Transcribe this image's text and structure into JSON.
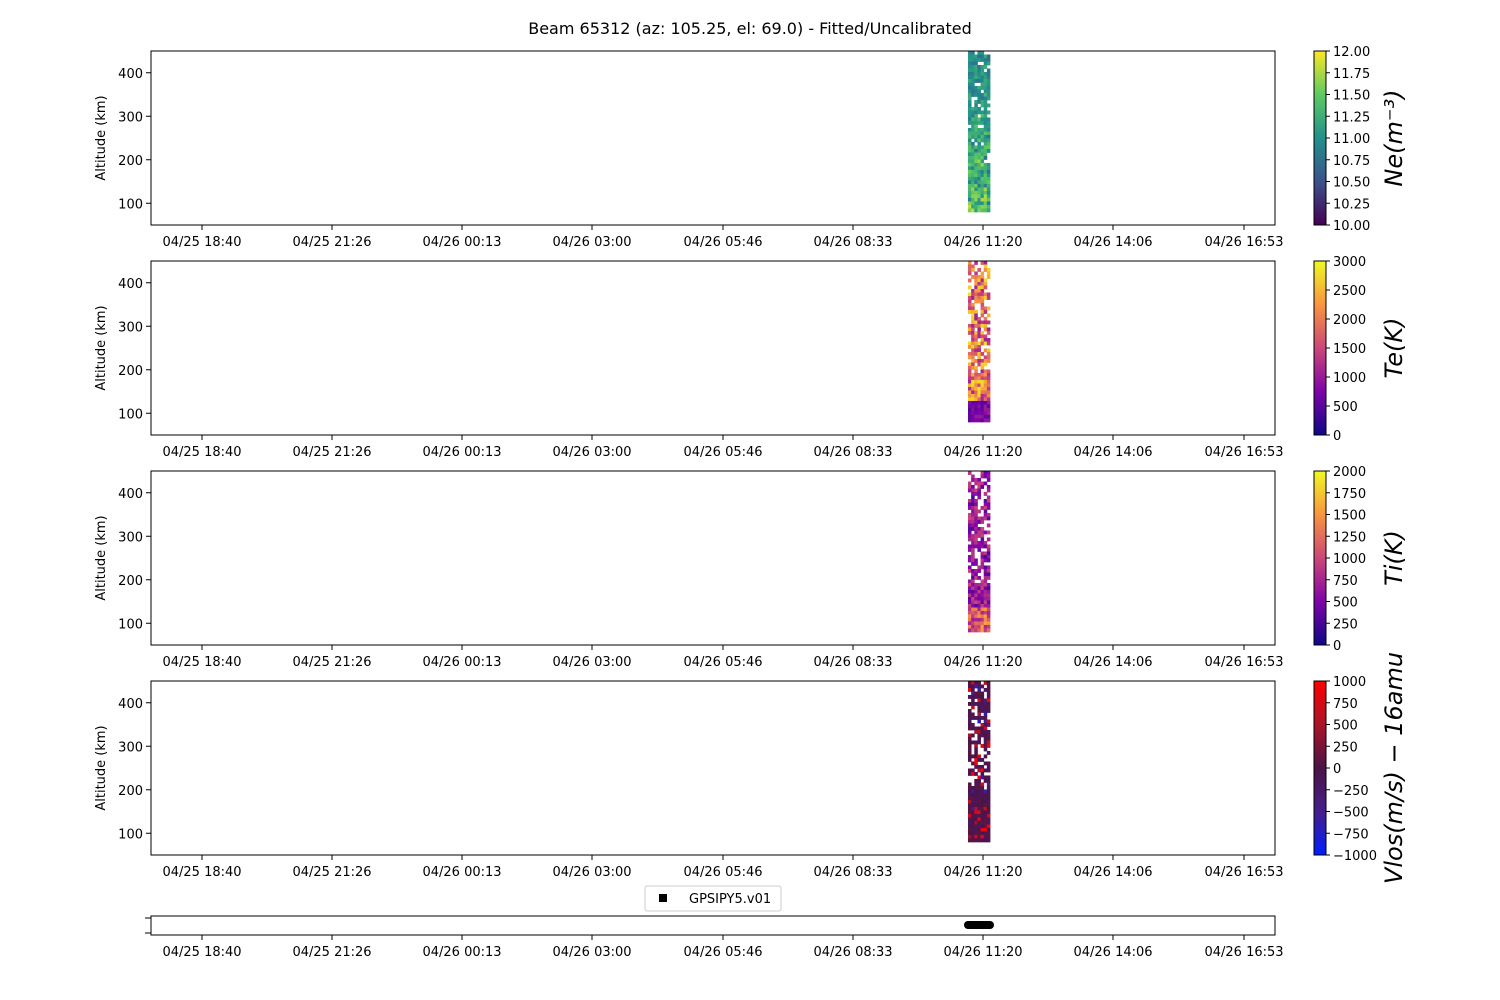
{
  "title": "Beam 65312 (az: 105.25, el: 69.0) - Fitted/Uncalibrated",
  "time_ticks": [
    "04/25 18:40",
    "04/25 21:26",
    "04/26 00:13",
    "04/26 03:00",
    "04/26 05:46",
    "04/26 08:33",
    "04/26 11:20",
    "04/26 14:06",
    "04/26 16:53"
  ],
  "legend_label": "GPSIPY5.v01",
  "chart_data": [
    {
      "type": "heatmap",
      "ylabel": "Altitude (km)",
      "yticks": [
        100,
        200,
        300,
        400
      ],
      "ylim": [
        50,
        450
      ],
      "data_time_range": [
        "04/26 10:45",
        "04/26 11:30"
      ],
      "data_alt_range_km": [
        80,
        450
      ],
      "colorbar": {
        "label": "Ne(m⁻³)",
        "colormap": "viridis",
        "range": [
          10.0,
          12.0
        ],
        "ticks": [
          "12.00",
          "11.75",
          "11.50",
          "11.25",
          "11.00",
          "10.75",
          "10.50",
          "10.25",
          "10.00"
        ]
      }
    },
    {
      "type": "heatmap",
      "ylabel": "Altitude (km)",
      "yticks": [
        100,
        200,
        300,
        400
      ],
      "ylim": [
        50,
        450
      ],
      "data_time_range": [
        "04/26 10:45",
        "04/26 11:30"
      ],
      "data_alt_range_km": [
        80,
        450
      ],
      "colorbar": {
        "label": "Te(K)",
        "colormap": "plasma",
        "range": [
          0,
          3000
        ],
        "ticks": [
          "3000",
          "2500",
          "2000",
          "1500",
          "1000",
          "500",
          "0"
        ]
      }
    },
    {
      "type": "heatmap",
      "ylabel": "Altitude (km)",
      "yticks": [
        100,
        200,
        300,
        400
      ],
      "ylim": [
        50,
        450
      ],
      "data_time_range": [
        "04/26 10:45",
        "04/26 11:30"
      ],
      "data_alt_range_km": [
        80,
        450
      ],
      "colorbar": {
        "label": "Ti(K)",
        "colormap": "plasma",
        "range": [
          0,
          2000
        ],
        "ticks": [
          "2000",
          "1750",
          "1500",
          "1250",
          "1000",
          "750",
          "500",
          "250",
          "0"
        ]
      }
    },
    {
      "type": "heatmap",
      "ylabel": "Altitude (km)",
      "yticks": [
        100,
        200,
        300,
        400
      ],
      "ylim": [
        50,
        450
      ],
      "data_time_range": [
        "04/26 10:45",
        "04/26 11:30"
      ],
      "data_alt_range_km": [
        80,
        450
      ],
      "colorbar": {
        "label": "Vlos(m/s) − 16amu",
        "colormap": "bwr-dark",
        "range": [
          -1000,
          1000
        ],
        "ticks": [
          "1000",
          "750",
          "500",
          "250",
          "0",
          "−250",
          "−500",
          "−750",
          "−1000"
        ]
      }
    }
  ]
}
